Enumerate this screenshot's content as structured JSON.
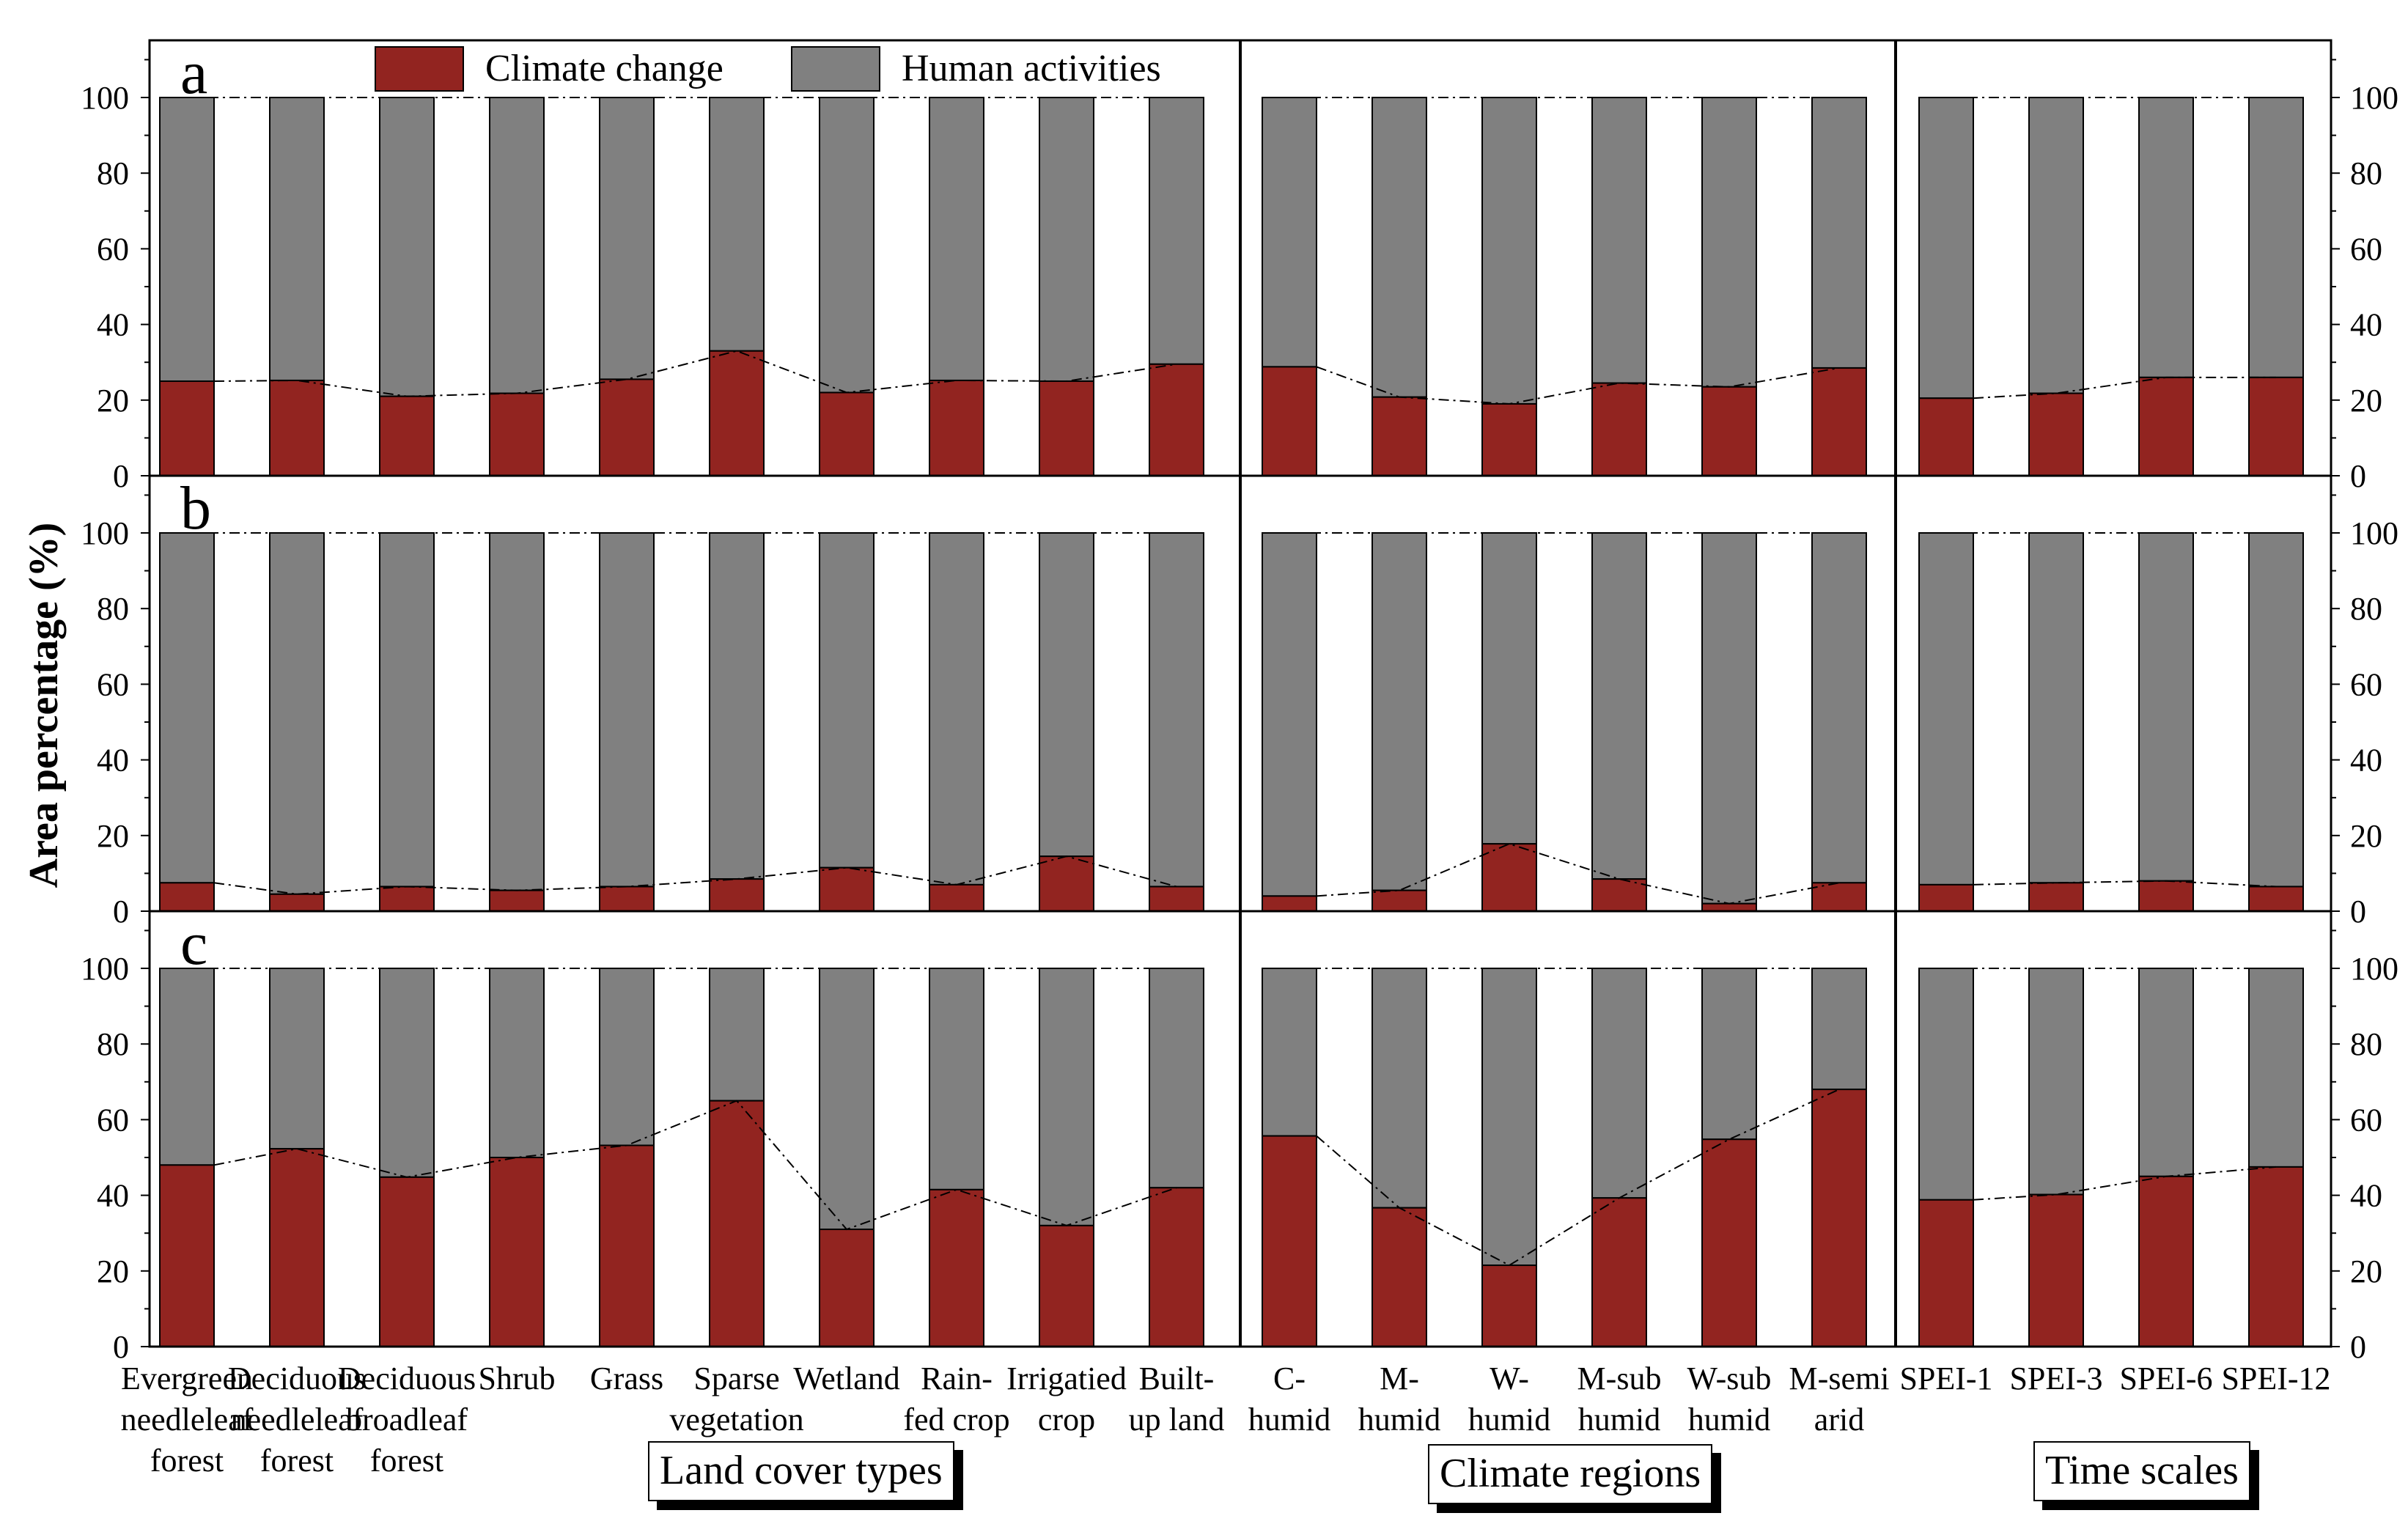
{
  "chart_data": {
    "type": "bar",
    "stacked": true,
    "ylabel": "Area percentage (%)",
    "ylim": [
      0,
      115
    ],
    "yticks": [
      0,
      20,
      40,
      60,
      80,
      100
    ],
    "legend": [
      {
        "name": "Climate change",
        "color": "#922420"
      },
      {
        "name": "Human activities",
        "color": "#808080"
      }
    ],
    "categories": [
      "Evergreen needleleaf forest",
      "Deciduous needleleaf forest",
      "Deciduous broadleaf forest",
      "Shrub",
      "Grass",
      "Sparse vegetation",
      "Wetland",
      "Rain-fed crop",
      "Irrigatied crop",
      "Built-up land",
      "C-humid",
      "M-humid",
      "W-humid",
      "M-sub humid",
      "W-sub humid",
      "M-semi arid",
      "SPEI-1",
      "SPEI-3",
      "SPEI-6",
      "SPEI-12"
    ],
    "category_lines": [
      [
        "Evergreen",
        "needleleaf",
        "forest"
      ],
      [
        "Deciduous",
        "needleleaf",
        "forest"
      ],
      [
        "Deciduous",
        "broadleaf",
        "forest"
      ],
      [
        "Shrub"
      ],
      [
        "Grass"
      ],
      [
        "Sparse",
        "vegetation"
      ],
      [
        "Wetland"
      ],
      [
        "Rain-",
        "fed crop"
      ],
      [
        "Irrigatied",
        "crop"
      ],
      [
        "Built-",
        "up land"
      ],
      [
        "C-",
        "humid"
      ],
      [
        "M-",
        "humid"
      ],
      [
        "W-",
        "humid"
      ],
      [
        "M-sub",
        "humid"
      ],
      [
        "W-sub",
        "humid"
      ],
      [
        "M-semi",
        "arid"
      ],
      [
        "SPEI-1"
      ],
      [
        "SPEI-3"
      ],
      [
        "SPEI-6"
      ],
      [
        "SPEI-12"
      ]
    ],
    "groups": [
      {
        "label": "Land cover types",
        "count": 10
      },
      {
        "label": "Climate regions",
        "count": 6
      },
      {
        "label": "Time scales",
        "count": 4
      }
    ],
    "panels": [
      {
        "label": "a",
        "climate_change": [
          25,
          25.2,
          21,
          21.8,
          25.5,
          33,
          22,
          25.2,
          25,
          29.5,
          28.8,
          20.8,
          19,
          24.5,
          23.5,
          28.5,
          20.5,
          21.8,
          26,
          26
        ]
      },
      {
        "label": "b",
        "climate_change": [
          7.5,
          4.5,
          6.5,
          5.5,
          6.5,
          8.5,
          11.5,
          7,
          14.5,
          6.5,
          4,
          5.5,
          17.8,
          8.5,
          2,
          7.5,
          7,
          7.5,
          8,
          6.5
        ]
      },
      {
        "label": "c",
        "climate_change": [
          48,
          52.3,
          44.8,
          50,
          53.2,
          65,
          31,
          41.5,
          32,
          42,
          55.7,
          36.7,
          21.5,
          39.3,
          54.8,
          68,
          38.8,
          40.2,
          45,
          47.5
        ]
      }
    ]
  }
}
